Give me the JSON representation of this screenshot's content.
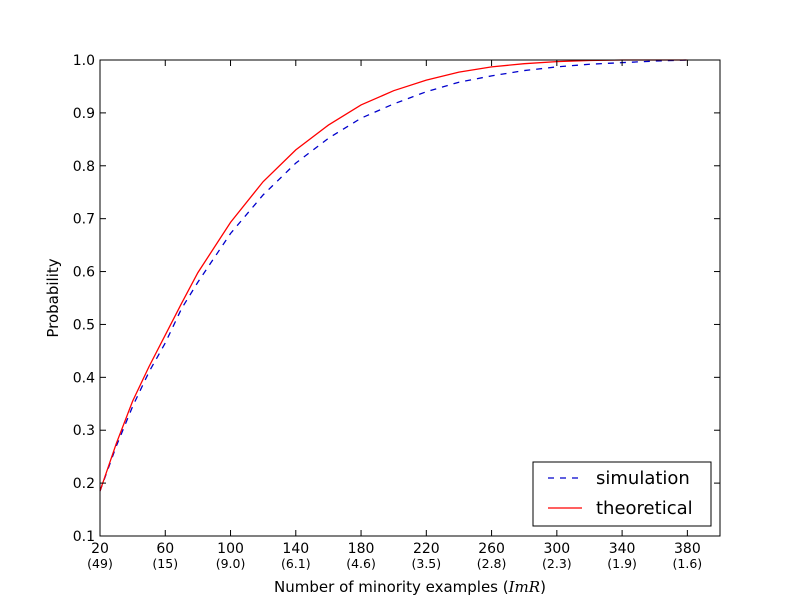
{
  "chart_data": {
    "type": "line",
    "title": "",
    "xlabel": "Number of minority examples (ImR)",
    "xlabel_main": "Number of minority examples (",
    "xlabel_math": "ImR",
    "xlabel_close": ")",
    "ylabel": "Probability",
    "xlim": [
      20,
      400
    ],
    "ylim": [
      0.1,
      1.0
    ],
    "xticks": [
      20,
      60,
      100,
      140,
      180,
      220,
      260,
      300,
      340,
      380
    ],
    "xtick_labels": [
      "20",
      "60",
      "100",
      "140",
      "180",
      "220",
      "260",
      "300",
      "340",
      "380"
    ],
    "xtick_sublabels": [
      "(49)",
      "(15)",
      "(9.0)",
      "(6.1)",
      "(4.6)",
      "(3.5)",
      "(2.8)",
      "(2.3)",
      "(1.9)",
      "(1.6)"
    ],
    "yticks": [
      0.1,
      0.2,
      0.3,
      0.4,
      0.5,
      0.6,
      0.7,
      0.8,
      0.9,
      1.0
    ],
    "ytick_labels": [
      "0.1",
      "0.2",
      "0.3",
      "0.4",
      "0.5",
      "0.6",
      "0.7",
      "0.8",
      "0.9",
      "1.0"
    ],
    "grid": false,
    "legend_position": "lower-right",
    "series": [
      {
        "name": "simulation",
        "color": "#0000cc",
        "style": "dashed",
        "x": [
          20,
          30,
          40,
          50,
          60,
          70,
          80,
          100,
          120,
          140,
          160,
          180,
          200,
          220,
          240,
          260,
          280,
          300,
          320,
          340,
          360,
          380
        ],
        "y": [
          0.185,
          0.27,
          0.345,
          0.41,
          0.465,
          0.53,
          0.58,
          0.672,
          0.745,
          0.805,
          0.852,
          0.89,
          0.917,
          0.94,
          0.958,
          0.97,
          0.98,
          0.987,
          0.992,
          0.995,
          0.998,
          1.0
        ]
      },
      {
        "name": "theoretical",
        "color": "#ff0000",
        "style": "solid",
        "x": [
          20,
          30,
          40,
          50,
          60,
          70,
          80,
          100,
          120,
          140,
          160,
          180,
          200,
          220,
          240,
          260,
          280,
          300,
          320,
          340,
          360,
          380
        ],
        "y": [
          0.185,
          0.275,
          0.355,
          0.42,
          0.48,
          0.54,
          0.598,
          0.693,
          0.77,
          0.83,
          0.877,
          0.915,
          0.942,
          0.962,
          0.977,
          0.987,
          0.993,
          0.997,
          0.999,
          1.0,
          1.0,
          1.0
        ]
      }
    ]
  }
}
